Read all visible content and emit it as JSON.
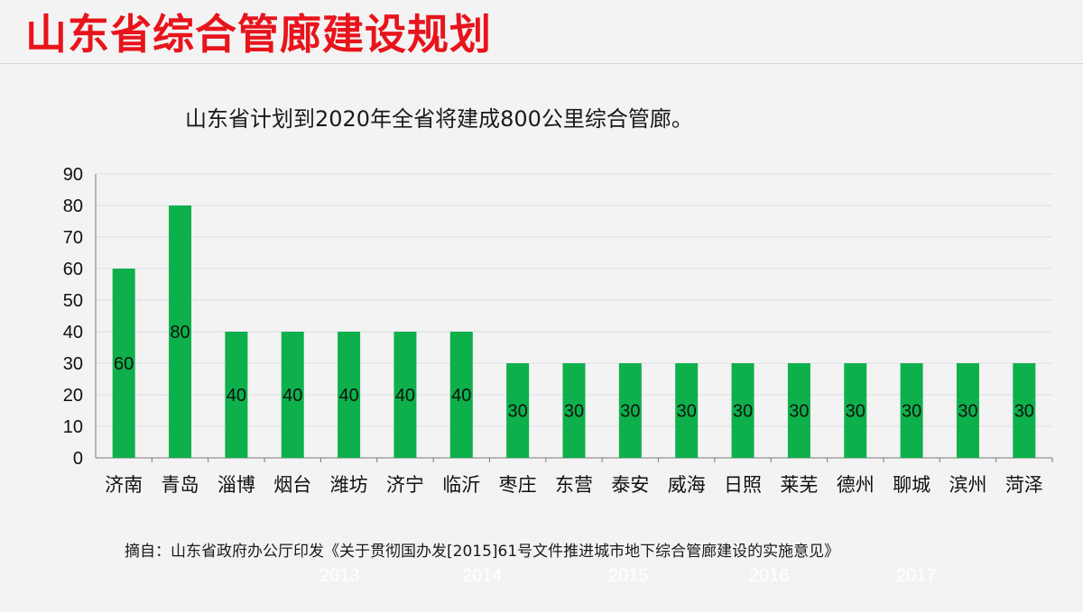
{
  "slide": {
    "title": "山东省综合管廊建设规划",
    "subtitle": "山东省计划到2020年全省将建成800公里综合管廊。",
    "source_note": "摘自：山东省政府办公厅印发《关于贯彻国办发[2015]61号文件推进城市地下综合管廊建设的实施意见》",
    "year_watermarks": [
      "2013",
      "2014",
      "2015",
      "2016",
      "2017"
    ]
  },
  "colors": {
    "title": "#e8141c",
    "bar": "#0db04b",
    "grid": "#dcdce8",
    "axis": "#7a7a7a"
  },
  "chart_data": {
    "type": "bar",
    "title": "",
    "xlabel": "",
    "ylabel": "",
    "categories": [
      "济南",
      "青岛",
      "淄博",
      "烟台",
      "潍坊",
      "济宁",
      "临沂",
      "枣庄",
      "东营",
      "泰安",
      "威海",
      "日照",
      "莱芜",
      "德州",
      "聊城",
      "滨州",
      "菏泽"
    ],
    "values": [
      60,
      80,
      40,
      40,
      40,
      40,
      40,
      30,
      30,
      30,
      30,
      30,
      30,
      30,
      30,
      30,
      30
    ],
    "ylim": [
      0,
      90
    ],
    "yticks": [
      0,
      10,
      20,
      30,
      40,
      50,
      60,
      70,
      80,
      90
    ],
    "grid": true,
    "data_labels": true,
    "legend": "none"
  }
}
